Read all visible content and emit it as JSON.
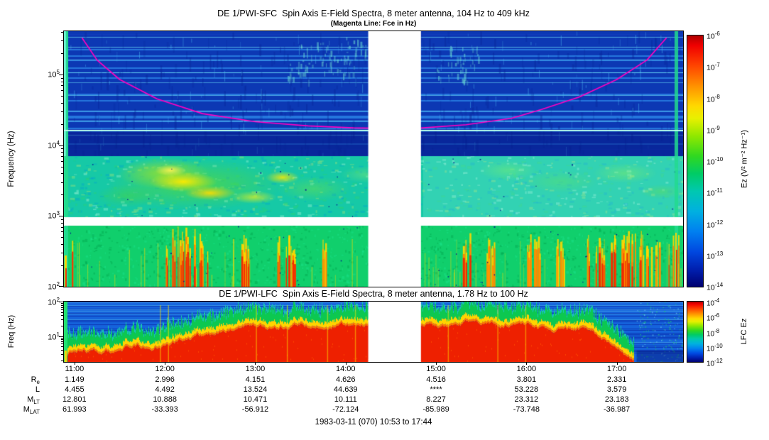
{
  "top_panel": {
    "title": "DE 1/PWI-SFC  Spin Axis E-Field Spectra, 8 meter antenna, 104 Hz to 409 kHz",
    "subtitle": "(Magenta Line: Fce in Hz)",
    "ylabel": "Frequency (Hz)",
    "ytick_exponents": [
      5,
      4,
      3,
      2
    ],
    "colorbar": {
      "label": "Ez (V² m⁻² Hz⁻¹)",
      "tick_exponents": [
        -6,
        -7,
        -8,
        -9,
        -10,
        -11,
        -12,
        -13,
        -14
      ]
    }
  },
  "bottom_panel": {
    "title": "DE 1/PWI-LFC  Spin Axis E-Field Spectra, 8 meter antenna, 1.78 Hz to 100 Hz",
    "ylabel": "Freq (Hz)",
    "ytick_exponents": [
      2,
      1
    ],
    "colorbar": {
      "label": "LFC Ez",
      "tick_exponents": [
        -4,
        -6,
        -8,
        -10,
        -12
      ]
    }
  },
  "xaxis": {
    "start_ut": "10:53",
    "end_ut": "17:44",
    "ticks": [
      "11:00",
      "12:00",
      "13:00",
      "14:00",
      "15:00",
      "16:00",
      "17:00"
    ]
  },
  "ephemeris": {
    "rows": [
      {
        "base": "R",
        "sub": "e",
        "values": [
          "1.149",
          "2.996",
          "4.151",
          "4.626",
          "4.516",
          "3.801",
          "2.331"
        ]
      },
      {
        "base": "L",
        "sub": "",
        "values": [
          "4.455",
          "4.492",
          "13.524",
          "44.639",
          "****",
          "53.228",
          "3.579"
        ]
      },
      {
        "base": "M",
        "sub": "LT",
        "values": [
          "12.801",
          "10.888",
          "10.471",
          "10.111",
          "8.227",
          "23.312",
          "23.183"
        ]
      },
      {
        "base": "M",
        "sub": "LAT",
        "values": [
          "61.993",
          "-33.393",
          "-56.912",
          "-72.124",
          "-85.989",
          "-73.748",
          "-36.987"
        ]
      }
    ]
  },
  "footer": {
    "text": "1983-03-11 (070) 10:53 to 17:44"
  },
  "colors": {
    "magenta_line": "#ff00c0",
    "cyan_line": "#8cffdc",
    "background": "#ffffff"
  },
  "chart_data": [
    {
      "type": "heatmap",
      "instrument": "DE 1/PWI-SFC",
      "title": "DE 1/PWI-SFC  Spin Axis E-Field Spectra, 8 meter antenna, 104 Hz to 409 kHz",
      "subtitle": "(Magenta Line: Fce in Hz)",
      "x_range_ut": [
        "10:53",
        "17:44"
      ],
      "x_ticks_ut": [
        "11:00",
        "12:00",
        "13:00",
        "14:00",
        "15:00",
        "16:00",
        "17:00"
      ],
      "y_scale": "log",
      "y_range_hz": [
        100,
        409000
      ],
      "y_tick_hz": [
        100,
        1000,
        10000,
        100000
      ],
      "z_label": "Ez (V² m⁻² Hz⁻¹)",
      "z_range": [
        1e-14,
        1e-06
      ],
      "palette": "rainbow",
      "data_gap_ut": [
        "14:15",
        "14:50"
      ],
      "white_band_hz": [
        870,
        1000
      ],
      "cyan_line_hz": 16500,
      "magenta_line": {
        "label": "Fce in Hz",
        "points_ut_hz": [
          [
            "11:05",
            330000
          ],
          [
            "11:15",
            160000
          ],
          [
            "11:30",
            85000
          ],
          [
            "11:55",
            45000
          ],
          [
            "12:25",
            28000
          ],
          [
            "13:00",
            21500
          ],
          [
            "13:35",
            18800
          ],
          [
            "14:05",
            17600
          ],
          [
            "14:18",
            17400
          ],
          [
            "14:50",
            17500
          ],
          [
            "15:20",
            19500
          ],
          [
            "15:50",
            24000
          ],
          [
            "16:10",
            32000
          ],
          [
            "16:35",
            48000
          ],
          [
            "17:00",
            85000
          ],
          [
            "17:20",
            160000
          ],
          [
            "17:33",
            330000
          ]
        ]
      },
      "qualitative_features": [
        "banded blue emission above ~7 kHz with thin horizontal cyan striations",
        "turquoise band 1-7 kHz with yellow-green enhancement 12:00-13:30 near 2 kHz",
        "green band 100 Hz-1 kHz with vertical yellow/orange/red bursty streaks, strongest near 12:10, 16:30-17:15 and at record edges"
      ]
    },
    {
      "type": "heatmap",
      "instrument": "DE 1/PWI-LFC",
      "title": "DE 1/PWI-LFC  Spin Axis E-Field Spectra, 8 meter antenna, 1.78 Hz to 100 Hz",
      "x_range_ut": [
        "10:53",
        "17:44"
      ],
      "y_scale": "log",
      "y_range_hz": [
        1.78,
        100
      ],
      "y_tick_hz": [
        10,
        100
      ],
      "z_label": "LFC Ez",
      "z_range": [
        1e-12,
        0.0001
      ],
      "palette": "rainbow",
      "data_gap_ut": [
        "14:15",
        "14:50"
      ],
      "red_band_top_fraction_by_ut": {
        "11:00": 0.18,
        "12:00": 0.32,
        "12:30": 0.52,
        "13:00": 0.58,
        "14:00": 0.63,
        "15:00": 0.62,
        "16:00": 0.62,
        "16:45": 0.52,
        "17:00": 0.28,
        "17:10": 0.05
      },
      "qualitative_features": [
        "intense low-frequency emission (red) below ~10-30 Hz rising through the orbit, collapsing after 17:00 to a weak blue banded spectrum"
      ]
    },
    {
      "type": "table",
      "name": "orbit ephemeris",
      "columns_ut": [
        "11:00",
        "12:00",
        "13:00",
        "14:00",
        "15:00",
        "16:00",
        "17:00"
      ],
      "rows": [
        {
          "label": "Re",
          "values": [
            "1.149",
            "2.996",
            "4.151",
            "4.626",
            "4.516",
            "3.801",
            "2.331"
          ]
        },
        {
          "label": "L",
          "values": [
            "4.455",
            "4.492",
            "13.524",
            "44.639",
            "****",
            "53.228",
            "3.579"
          ]
        },
        {
          "label": "MLT",
          "values": [
            "12.801",
            "10.888",
            "10.471",
            "10.111",
            "8.227",
            "23.312",
            "23.183"
          ]
        },
        {
          "label": "MLAT",
          "values": [
            "61.993",
            "-33.393",
            "-56.912",
            "-72.124",
            "-85.989",
            "-73.748",
            "-36.987"
          ]
        }
      ],
      "caption": "1983-03-11 (070) 10:53 to 17:44"
    }
  ]
}
